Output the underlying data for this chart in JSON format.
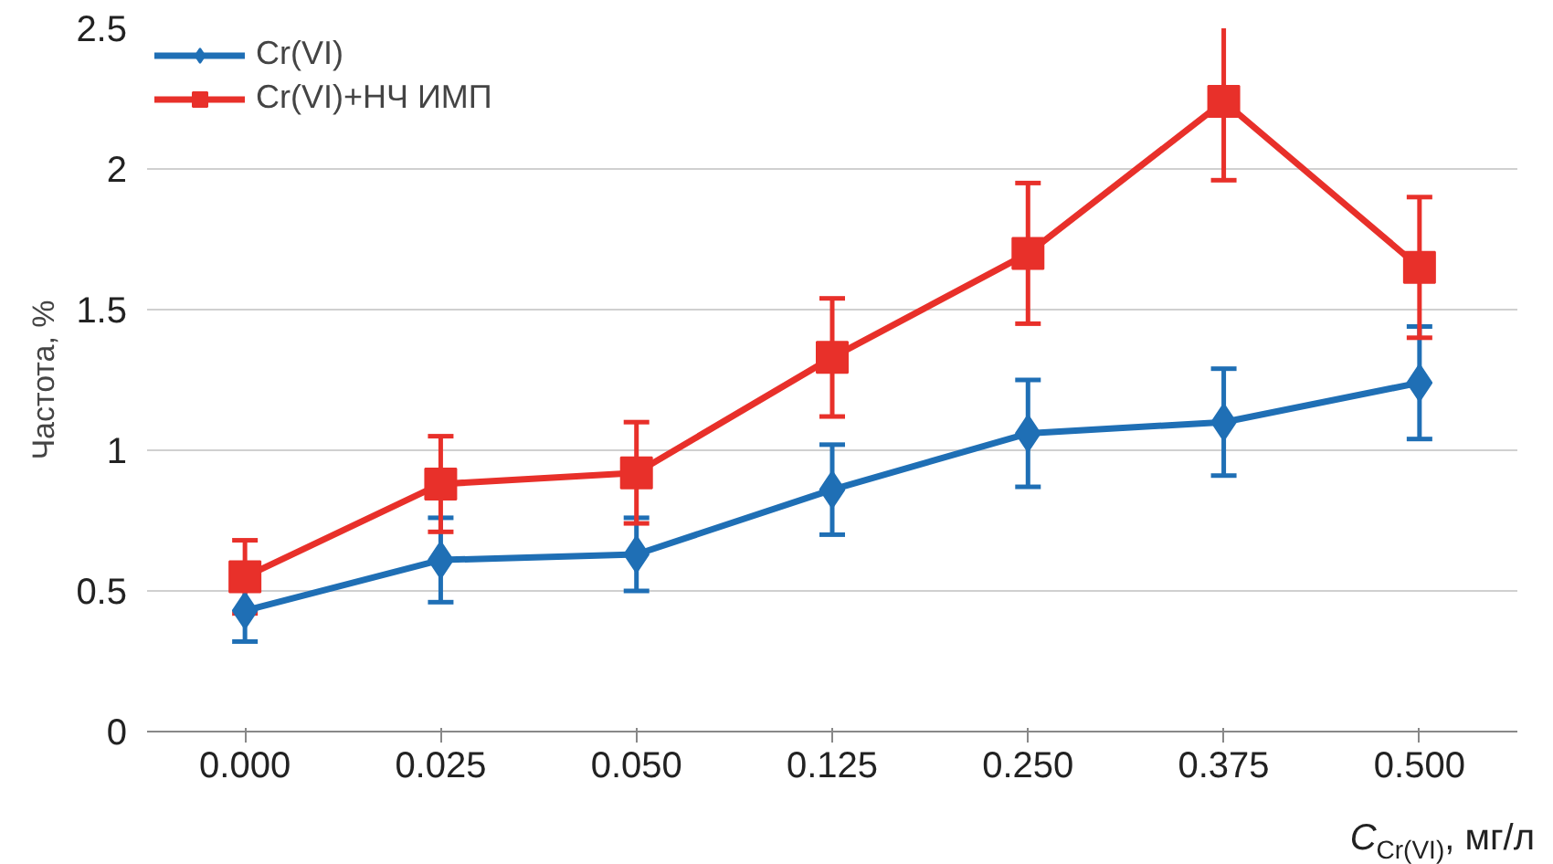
{
  "chart_data": {
    "type": "line",
    "ylabel": "Частота, %",
    "xlabel": "C$_{Cr(VI)}$, мг/л",
    "categories": [
      "0.000",
      "0.025",
      "0.050",
      "0.125",
      "0.250",
      "0.375",
      "0.500"
    ],
    "series": [
      {
        "name": "Cr(VI)",
        "color": "#1f6fb5",
        "marker": "diamond",
        "values": [
          0.43,
          0.61,
          0.63,
          0.86,
          1.06,
          1.1,
          1.24
        ],
        "errors": [
          0.11,
          0.15,
          0.13,
          0.16,
          0.19,
          0.19,
          0.2
        ]
      },
      {
        "name": "Cr(VI)+НЧ ИМП",
        "color": "#e8302a",
        "marker": "square",
        "values": [
          0.55,
          0.88,
          0.92,
          1.33,
          1.7,
          2.24,
          1.65
        ],
        "errors": [
          0.13,
          0.17,
          0.18,
          0.21,
          0.25,
          0.28,
          0.25
        ]
      }
    ],
    "ylim": [
      0,
      2.5
    ],
    "yticks": [
      0,
      0.5,
      1,
      1.5,
      2,
      2.5
    ],
    "grid": "y",
    "legend": "top left",
    "line_style": "solid"
  }
}
